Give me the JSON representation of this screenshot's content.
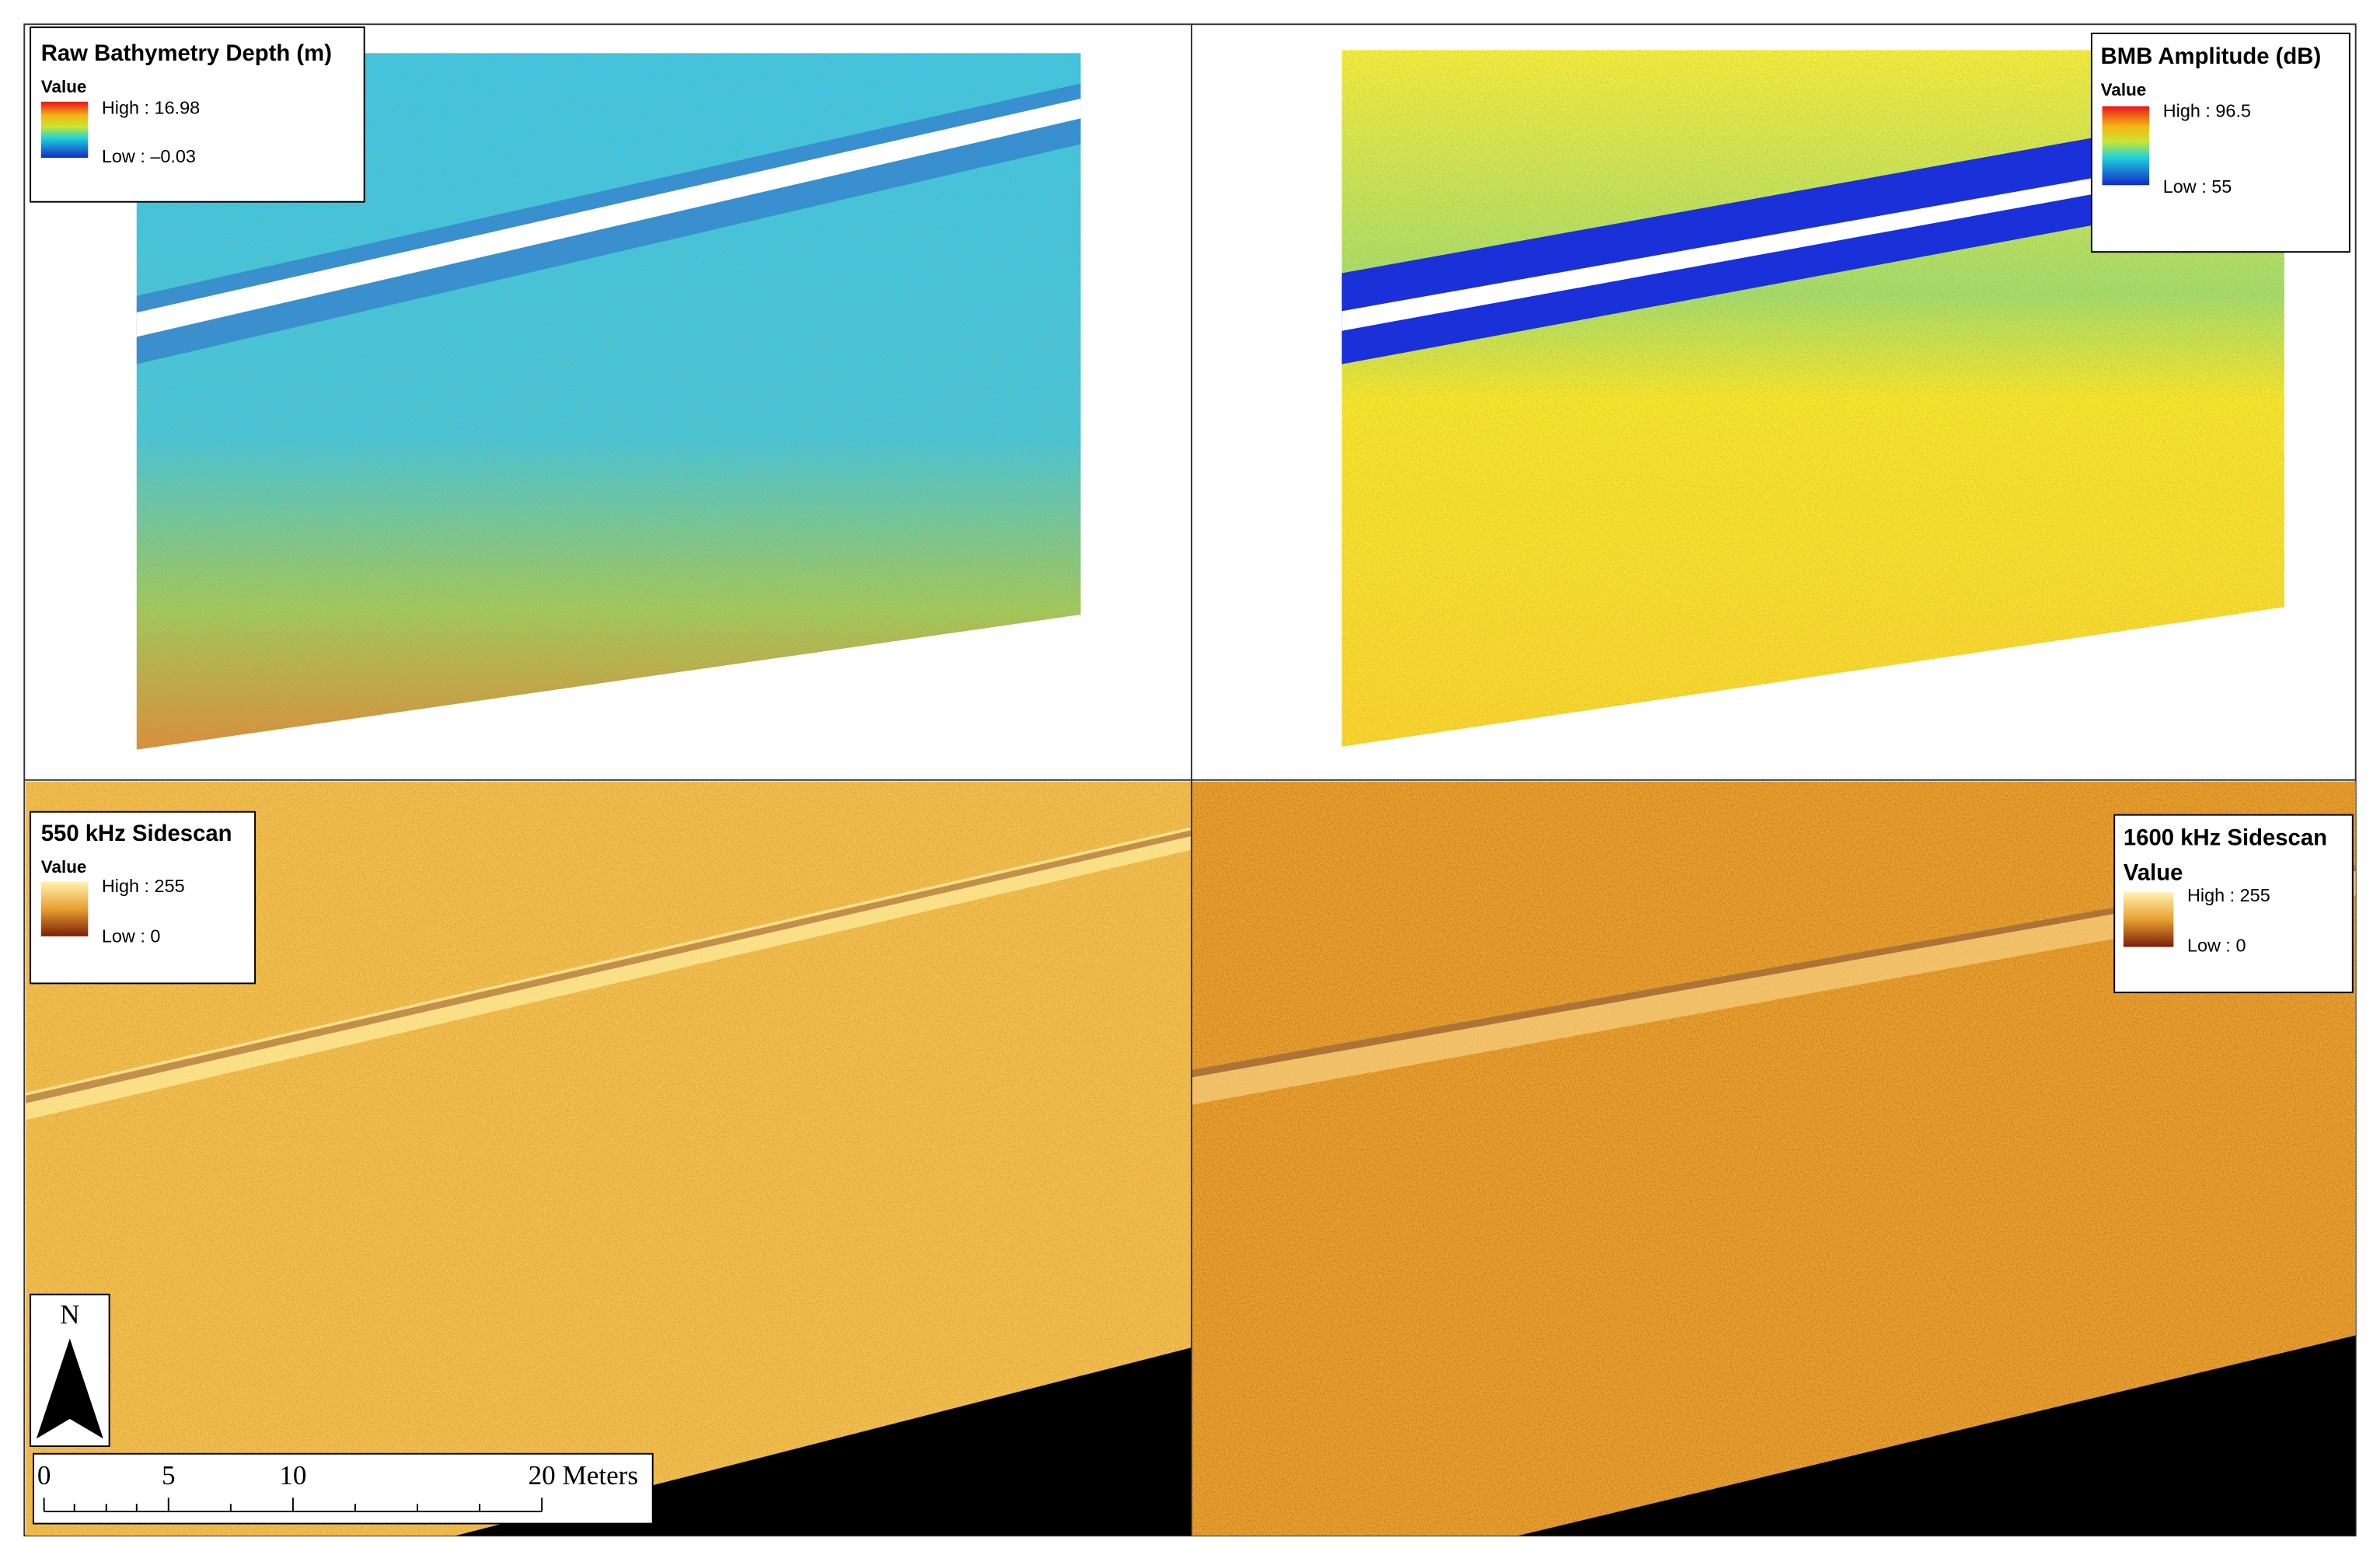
{
  "panels": [
    {
      "title": "Raw Bathymetry Depth (m)",
      "legend_heading": "Value",
      "high": "High : 16.98",
      "low": "Low : –0.03"
    },
    {
      "title": "BMB Amplitude (dB)",
      "legend_heading": "Value",
      "high": "High : 96.5",
      "low": "Low : 55"
    },
    {
      "title": "550 kHz Sidescan",
      "legend_heading": "Value",
      "high": "High : 255",
      "low": "Low : 0"
    },
    {
      "title": "1600 kHz Sidescan",
      "legend_heading": "Value",
      "high": "High : 255",
      "low": "Low : 0"
    }
  ],
  "north_arrow": "N",
  "scale_bar": {
    "labels": [
      "0",
      "5",
      "10",
      "20 Meters"
    ]
  }
}
